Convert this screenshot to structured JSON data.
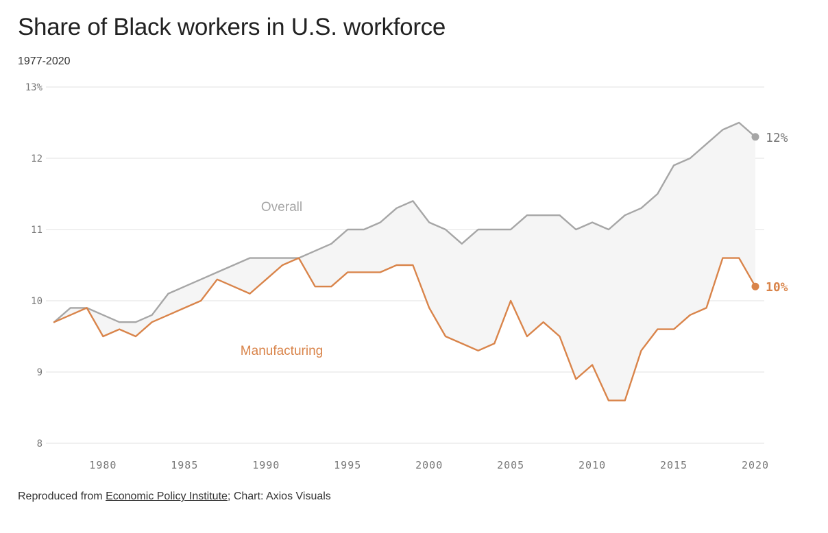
{
  "title": "Share of Black workers in U.S. workforce",
  "subtitle": "1977-2020",
  "footer": {
    "prefix": "Reproduced from ",
    "source_link": "Economic Policy Institute",
    "suffix": "; Chart: Axios Visuals"
  },
  "colors": {
    "overall": "#a6a6a6",
    "manufacturing": "#d9844a",
    "grid": "#e2e2e2",
    "fill": "#f5f5f5",
    "axis_text": "#777777"
  },
  "chart_data": {
    "type": "line",
    "xlim": [
      1977,
      2020
    ],
    "ylim": [
      8,
      13
    ],
    "x_ticks": [
      1980,
      1985,
      1990,
      1995,
      2000,
      2005,
      2010,
      2015,
      2020
    ],
    "x_tick_labels": [
      "1980",
      "1985",
      "1990",
      "1995",
      "2000",
      "2005",
      "2010",
      "2015",
      "2020"
    ],
    "y_ticks": [
      8,
      9,
      10,
      11,
      12,
      13
    ],
    "y_tick_labels": [
      "8",
      "9",
      "10",
      "11",
      "12",
      "13%"
    ],
    "grid": true,
    "x": [
      1977,
      1978,
      1979,
      1980,
      1981,
      1982,
      1983,
      1984,
      1985,
      1986,
      1987,
      1988,
      1989,
      1990,
      1991,
      1992,
      1993,
      1994,
      1995,
      1996,
      1997,
      1998,
      1999,
      2000,
      2001,
      2002,
      2003,
      2004,
      2005,
      2006,
      2007,
      2008,
      2009,
      2010,
      2011,
      2012,
      2013,
      2014,
      2015,
      2016,
      2017,
      2018,
      2019,
      2020
    ],
    "series": [
      {
        "name": "Overall",
        "end_label": "12%",
        "values": [
          9.7,
          9.9,
          9.9,
          9.8,
          9.7,
          9.7,
          9.8,
          10.1,
          10.2,
          10.3,
          10.4,
          10.5,
          10.6,
          10.6,
          10.6,
          10.6,
          10.7,
          10.8,
          11.0,
          11.0,
          11.1,
          11.3,
          11.4,
          11.1,
          11.0,
          10.8,
          11.0,
          11.0,
          11.0,
          11.2,
          11.2,
          11.2,
          11.0,
          11.1,
          11.0,
          11.2,
          11.3,
          11.5,
          11.9,
          12.0,
          12.2,
          12.4,
          12.5,
          12.3
        ]
      },
      {
        "name": "Manufacturing",
        "end_label": "10%",
        "values": [
          9.7,
          9.8,
          9.9,
          9.5,
          9.6,
          9.5,
          9.7,
          9.8,
          9.9,
          10.0,
          10.3,
          10.2,
          10.1,
          10.3,
          10.5,
          10.6,
          10.2,
          10.2,
          10.4,
          10.4,
          10.4,
          10.5,
          10.5,
          9.9,
          9.5,
          9.4,
          9.3,
          9.4,
          10.0,
          9.5,
          9.7,
          9.5,
          8.9,
          9.1,
          8.6,
          8.6,
          9.3,
          9.6,
          9.6,
          9.8,
          9.9,
          10.6,
          10.6,
          10.2
        ]
      }
    ]
  }
}
